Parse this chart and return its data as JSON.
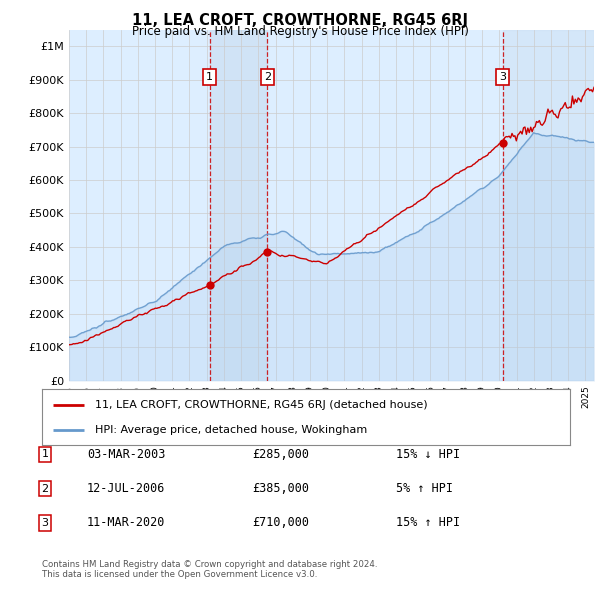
{
  "title": "11, LEA CROFT, CROWTHORNE, RG45 6RJ",
  "subtitle": "Price paid vs. HM Land Registry's House Price Index (HPI)",
  "ylim": [
    0,
    1050000
  ],
  "yticks": [
    0,
    100000,
    200000,
    300000,
    400000,
    500000,
    600000,
    700000,
    800000,
    900000,
    1000000
  ],
  "ytick_labels": [
    "£0",
    "£100K",
    "£200K",
    "£300K",
    "£400K",
    "£500K",
    "£600K",
    "£700K",
    "£800K",
    "£900K",
    "£1M"
  ],
  "background_color": "#ffffff",
  "plot_bg_color": "#ddeeff",
  "grid_color": "#cccccc",
  "hpi_color": "#6699cc",
  "price_color": "#cc0000",
  "transactions": [
    {
      "num": 1,
      "date": "03-MAR-2003",
      "price": 285000,
      "x_year": 2003.17
    },
    {
      "num": 2,
      "date": "12-JUL-2006",
      "price": 385000,
      "x_year": 2006.53
    },
    {
      "num": 3,
      "date": "11-MAR-2020",
      "price": 710000,
      "x_year": 2020.19
    }
  ],
  "legend_label_price": "11, LEA CROFT, CROWTHORNE, RG45 6RJ (detached house)",
  "legend_label_hpi": "HPI: Average price, detached house, Wokingham",
  "footer": "Contains HM Land Registry data © Crown copyright and database right 2024.\nThis data is licensed under the Open Government Licence v3.0.",
  "table_rows": [
    [
      "1",
      "03-MAR-2003",
      "£285,000",
      "15% ↓ HPI"
    ],
    [
      "2",
      "12-JUL-2006",
      "£385,000",
      "5% ↑ HPI"
    ],
    [
      "3",
      "11-MAR-2020",
      "£710,000",
      "15% ↑ HPI"
    ]
  ],
  "xmin": 1995.0,
  "xmax": 2025.5
}
